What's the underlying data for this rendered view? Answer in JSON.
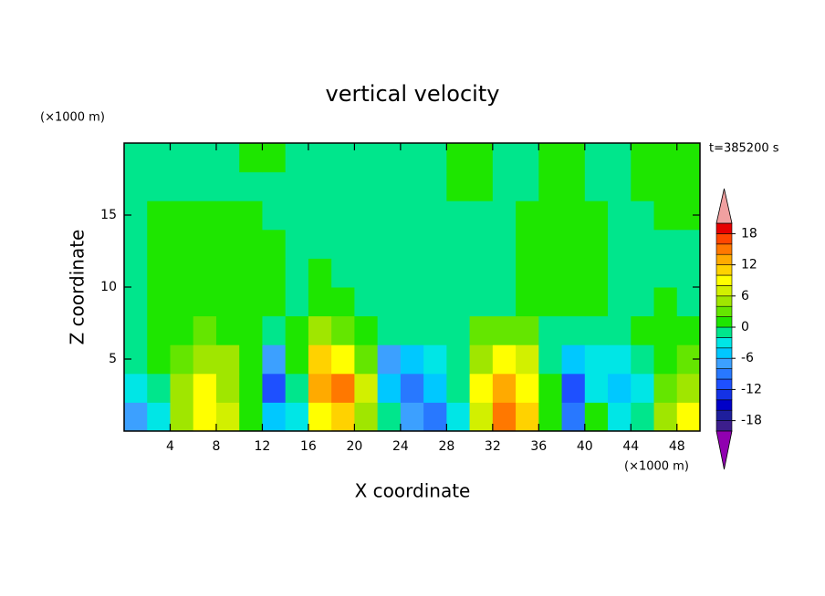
{
  "chart_data": {
    "type": "contour",
    "title": "vertical velocity",
    "time_label": "t=385200 s",
    "x_label": "X coordinate",
    "y_label": "Z coordinate",
    "x_unit": "(×1000 m)",
    "y_unit": "(×1000 m)",
    "xlim": [
      0,
      50
    ],
    "ylim": [
      0,
      20
    ],
    "xticks": [
      4,
      8,
      12,
      16,
      20,
      24,
      28,
      32,
      36,
      40,
      44,
      48
    ],
    "yticks": [
      5,
      10,
      15
    ],
    "x": [
      1,
      3,
      5,
      7,
      9,
      11,
      13,
      15,
      17,
      19,
      21,
      23,
      25,
      27,
      29,
      31,
      33,
      35,
      37,
      39,
      41,
      43,
      45,
      47,
      49
    ],
    "y": [
      1,
      3,
      5,
      7,
      9,
      11,
      13,
      15,
      17,
      19
    ],
    "z": [
      [
        -8,
        -4,
        4,
        9,
        6,
        1,
        -6,
        -3,
        8,
        11,
        4,
        -2,
        -8,
        -10,
        -4,
        6,
        14,
        10,
        1,
        -10,
        0,
        -4,
        -2,
        4,
        8
      ],
      [
        -4,
        -2,
        4,
        8,
        5,
        0,
        -12,
        -2,
        12,
        14,
        6,
        -5,
        -10,
        -6,
        -2,
        8,
        12,
        9,
        0,
        -12,
        -4,
        -6,
        -3,
        2,
        4
      ],
      [
        -2,
        0,
        3,
        5,
        4,
        0,
        -8,
        1,
        10,
        9,
        3,
        -8,
        -6,
        -3,
        -1,
        4,
        8,
        6,
        -2,
        -5,
        -3,
        -3,
        -2,
        1,
        2
      ],
      [
        -1,
        1,
        1,
        2,
        1,
        1,
        -2,
        1,
        4,
        3,
        1,
        -2,
        -2,
        -1,
        -1,
        2,
        3,
        2,
        -1,
        -2,
        -1,
        -1,
        1,
        1,
        1
      ],
      [
        -1,
        1,
        1,
        1,
        1,
        1,
        1,
        -1,
        1,
        1,
        -1,
        -1,
        -1,
        -1,
        -1,
        -1,
        -1,
        1,
        1,
        1,
        1,
        -1,
        -1,
        1,
        -1
      ],
      [
        -1,
        1,
        1,
        1,
        1,
        1,
        1,
        -1,
        1,
        -1,
        -1,
        -1,
        -1,
        -1,
        -1,
        -1,
        -1,
        1,
        1,
        1,
        1,
        -1,
        -1,
        -1,
        -1
      ],
      [
        -1,
        1,
        1,
        1,
        1,
        1,
        1,
        -1,
        -1,
        -1,
        -1,
        -1,
        -1,
        -1,
        -1,
        -1,
        -1,
        1,
        1,
        1,
        1,
        -1,
        -1,
        -1,
        -1
      ],
      [
        -1,
        1,
        1,
        1,
        1,
        1,
        -1,
        -1,
        -1,
        -1,
        -1,
        -1,
        -1,
        -1,
        -1,
        -1,
        -1,
        1,
        1,
        1,
        1,
        -1,
        -1,
        1,
        1
      ],
      [
        -1,
        -1,
        -1,
        -1,
        -1,
        -1,
        -1,
        -1,
        -1,
        -1,
        -1,
        -1,
        -1,
        -1,
        1,
        1,
        -1,
        -1,
        1,
        1,
        -1,
        -1,
        1,
        1,
        1
      ],
      [
        -1,
        -1,
        -1,
        -1,
        -1,
        1,
        1,
        -1,
        -1,
        -1,
        -1,
        -1,
        -1,
        -1,
        1,
        1,
        -1,
        -1,
        1,
        1,
        -1,
        -1,
        1,
        1,
        1
      ]
    ],
    "clevels": [
      -20,
      -18,
      -16,
      -14,
      -12,
      -10,
      -8,
      -6,
      -4,
      -2,
      0,
      2,
      4,
      6,
      8,
      10,
      12,
      14,
      16,
      18,
      20
    ],
    "colors": [
      "#3c1e8c",
      "#1e1e9c",
      "#0000c8",
      "#1432e6",
      "#1e50ff",
      "#2878ff",
      "#3ca0ff",
      "#00c8ff",
      "#00e6e6",
      "#00e68c",
      "#1ee600",
      "#64e600",
      "#a0e600",
      "#d2f000",
      "#ffff00",
      "#ffd200",
      "#ffaa00",
      "#ff7800",
      "#ff4600",
      "#e60000"
    ],
    "under_color": "#9000b0",
    "over_color": "#f0a0a0",
    "cticks": [
      -18,
      -12,
      -6,
      0,
      6,
      12,
      18
    ]
  }
}
